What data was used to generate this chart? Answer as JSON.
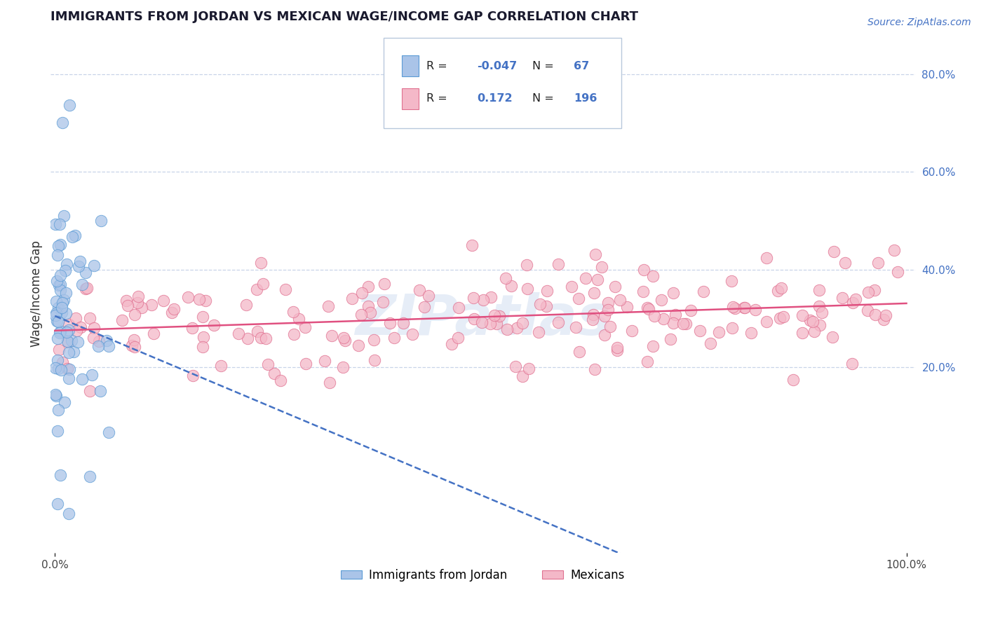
{
  "title": "IMMIGRANTS FROM JORDAN VS MEXICAN WAGE/INCOME GAP CORRELATION CHART",
  "source": "Source: ZipAtlas.com",
  "ylabel": "Wage/Income Gap",
  "watermark": "ZIPatlas",
  "jordan": {
    "R": -0.047,
    "N": 67,
    "color": "#aac4e8",
    "edge_color": "#5b9bd5",
    "line_color": "#4472c4",
    "line_style": "--"
  },
  "mexican": {
    "R": 0.172,
    "N": 196,
    "color": "#f4b8c8",
    "edge_color": "#e07090",
    "line_color": "#e05080",
    "line_style": "-"
  },
  "yticks_right": [
    0.2,
    0.4,
    0.6,
    0.8
  ],
  "ytick_right_labels": [
    "20.0%",
    "40.0%",
    "60.0%",
    "80.0%"
  ],
  "xtick_labels": [
    "0.0%",
    "100.0%"
  ],
  "xticks": [
    0.0,
    1.0
  ],
  "legend_jordan_label": "Immigrants from Jordan",
  "legend_mexican_label": "Mexicans",
  "background_color": "#ffffff",
  "grid_color": "#c8d4e8",
  "title_fontsize": 13,
  "legend_text_color": "#4472c4",
  "legend_label_color": "#333333",
  "seed": 42
}
